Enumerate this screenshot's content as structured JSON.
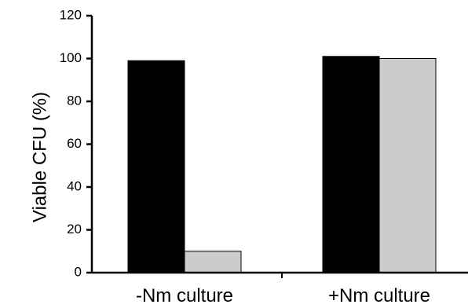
{
  "chart_data": {
    "type": "bar",
    "ylabel": "Viable CFU (%)",
    "ylim": [
      0,
      120
    ],
    "yticks": [
      0,
      20,
      40,
      60,
      80,
      100,
      120
    ],
    "categories": [
      "-Nm culture",
      "+Nm culture"
    ],
    "series": [
      {
        "color": "#000000",
        "values": [
          99,
          101
        ]
      },
      {
        "color": "#cccccc",
        "values": [
          10,
          100
        ]
      }
    ],
    "grid": false
  }
}
